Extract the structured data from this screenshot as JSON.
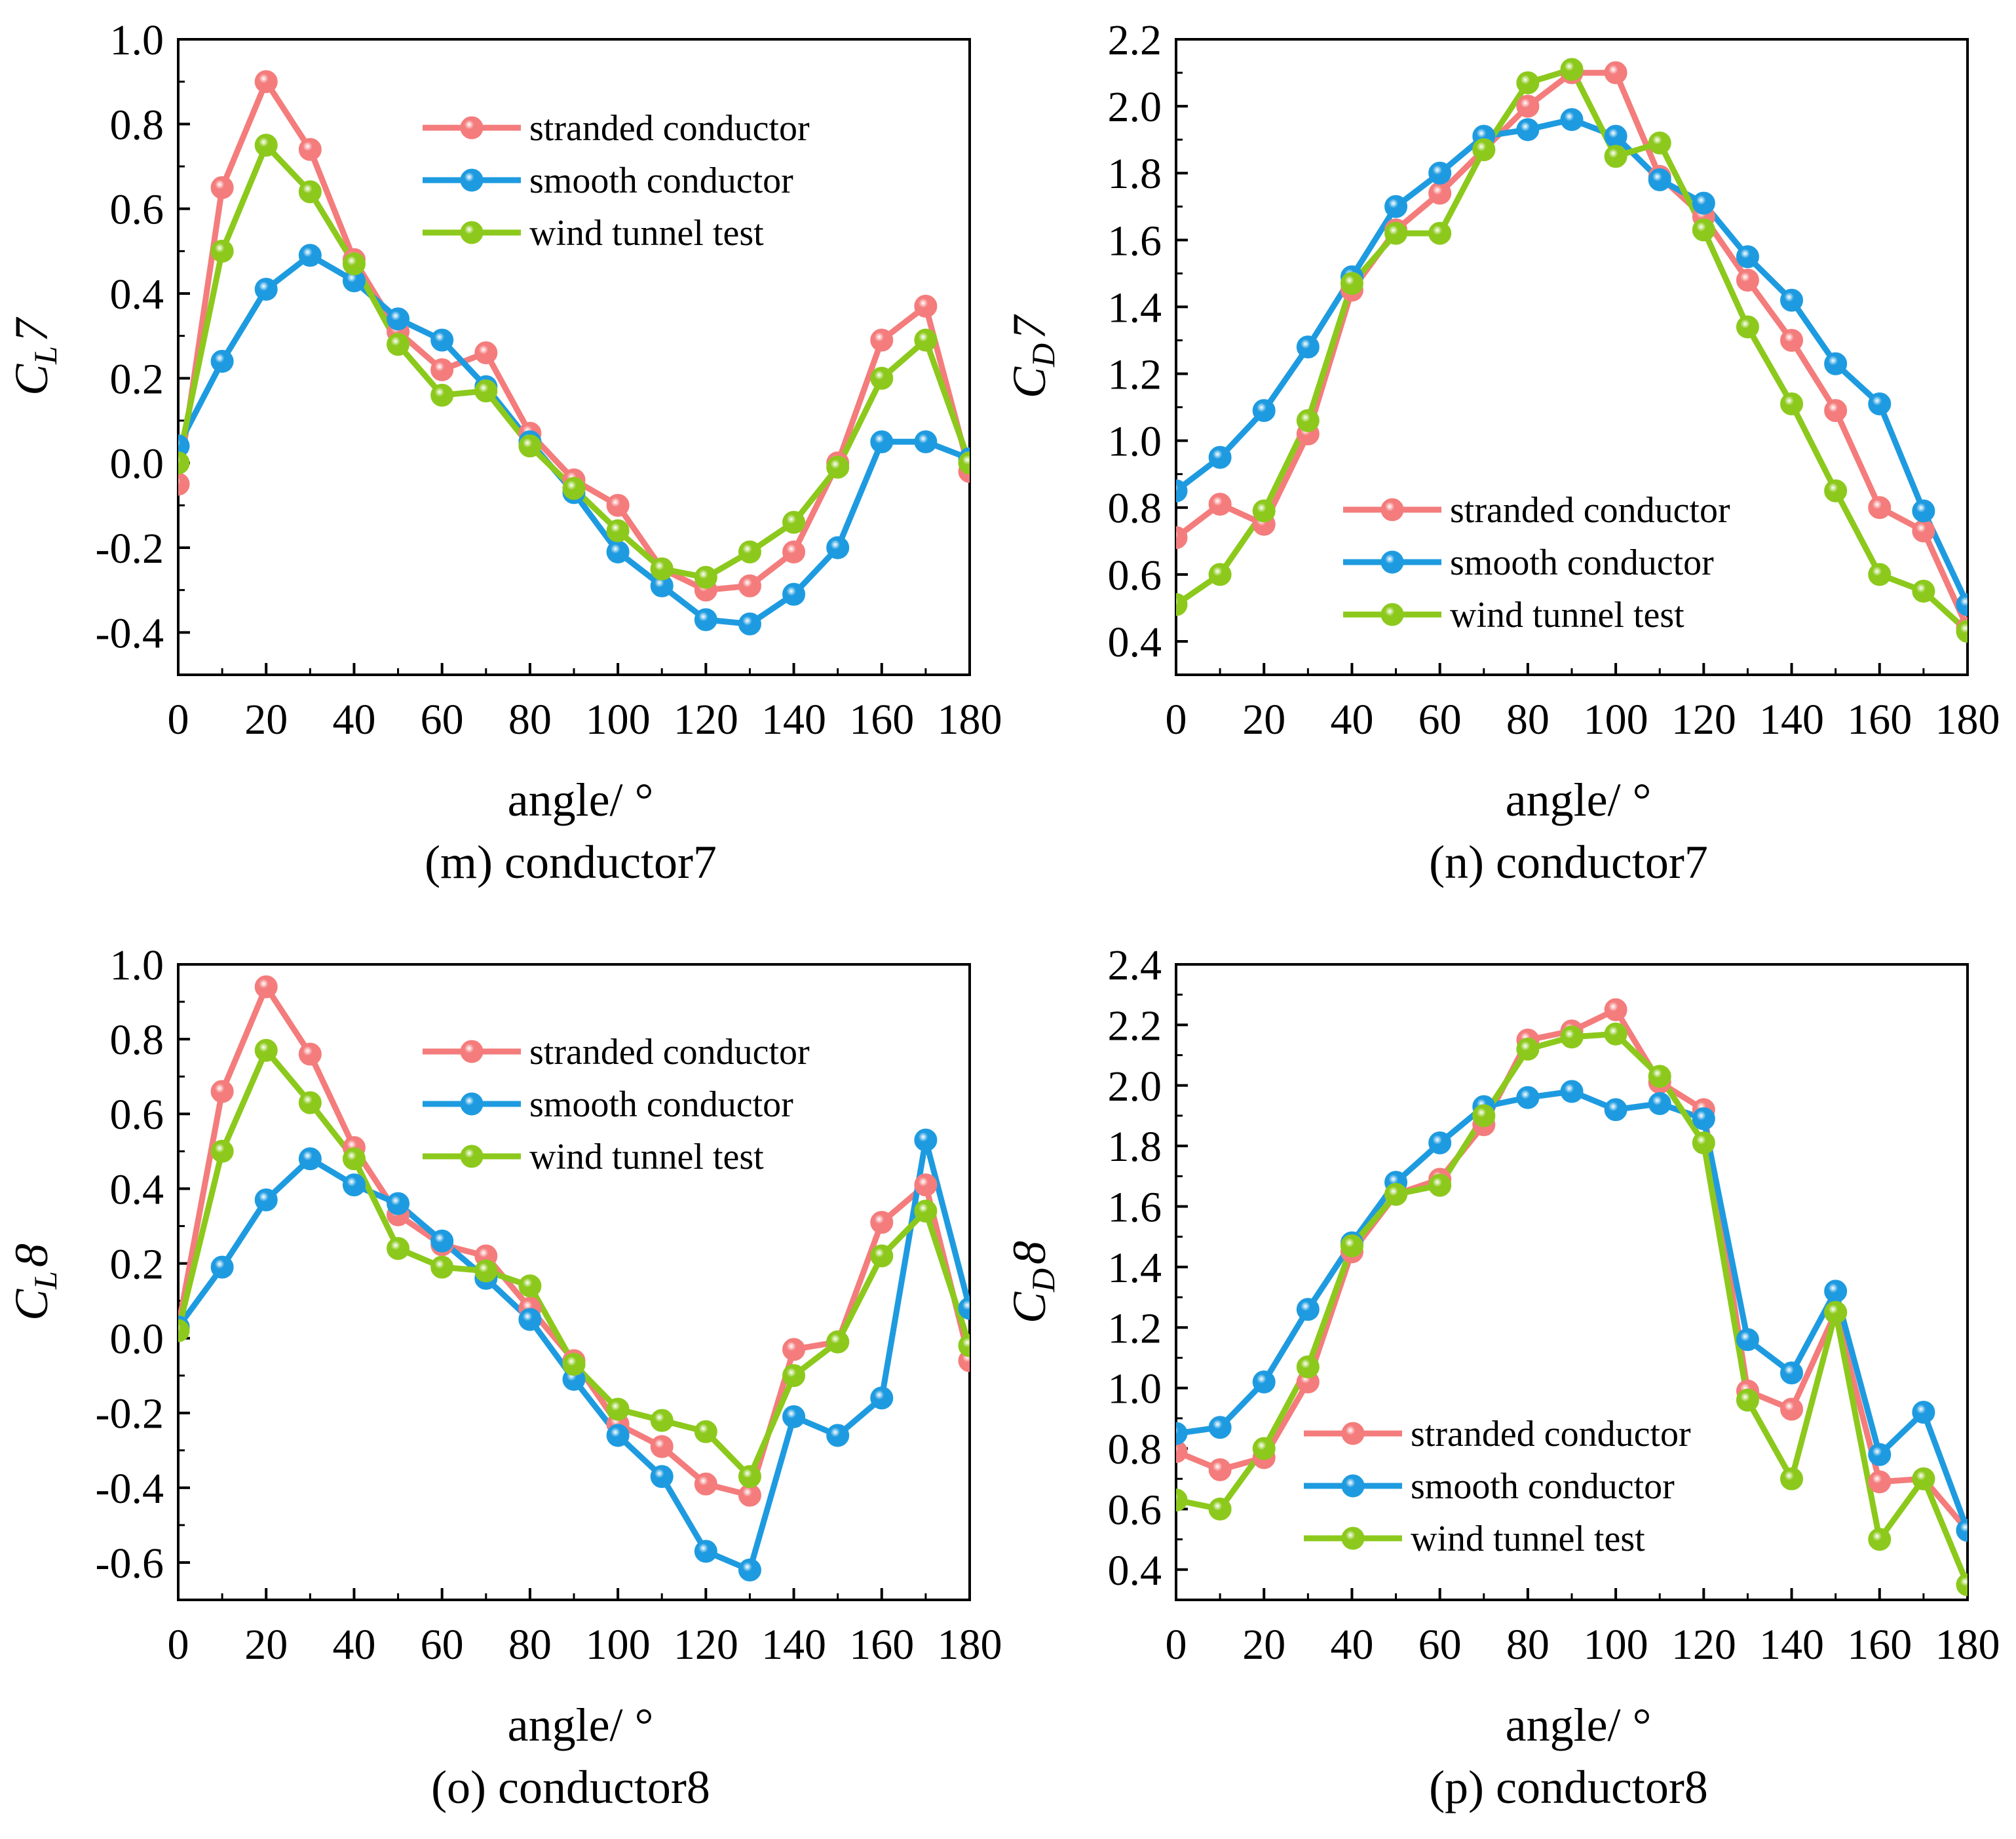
{
  "colors": {
    "stranded": "#f47c7c",
    "smooth": "#1e9be0",
    "wind": "#8cc91c"
  },
  "chart_data": [
    {
      "type": "line",
      "panel": "m",
      "caption": "(m) conductor7",
      "xlabel": "angle/ °",
      "ylabel": {
        "main": "C",
        "sub": "L",
        "num": "7"
      },
      "xlim": [
        0,
        180
      ],
      "ylim": [
        -0.5,
        1.0
      ],
      "xticks": [
        0,
        20,
        40,
        60,
        80,
        100,
        120,
        140,
        160,
        180
      ],
      "yticks": [
        -0.4,
        -0.2,
        0.0,
        0.2,
        0.4,
        0.6,
        0.8,
        1.0
      ],
      "ytick_labels": [
        "-0.4",
        "-0.2",
        "0.0",
        "0.2",
        "0.4",
        "0.6",
        "0.8",
        "1.0"
      ],
      "xtick_labels": [
        "0",
        "20",
        "40",
        "60",
        "80",
        "100",
        "120",
        "140",
        "160",
        "180"
      ],
      "legend_position": "top-right",
      "x": [
        0,
        10,
        20,
        30,
        40,
        50,
        60,
        70,
        80,
        90,
        100,
        110,
        120,
        130,
        140,
        150,
        160,
        170,
        180
      ],
      "series": [
        {
          "name": "stranded conductor",
          "key": "stranded",
          "values": [
            -0.05,
            0.65,
            0.9,
            0.74,
            0.48,
            0.31,
            0.22,
            0.26,
            0.07,
            -0.04,
            -0.1,
            -0.25,
            -0.3,
            -0.29,
            -0.21,
            0.0,
            0.29,
            0.37,
            -0.02
          ]
        },
        {
          "name": "smooth conductor",
          "key": "smooth",
          "values": [
            0.04,
            0.24,
            0.41,
            0.49,
            0.43,
            0.34,
            0.29,
            0.18,
            0.05,
            -0.07,
            -0.21,
            -0.29,
            -0.37,
            -0.38,
            -0.31,
            -0.2,
            0.05,
            0.05,
            0.01
          ]
        },
        {
          "name": "wind tunnel test",
          "key": "wind",
          "values": [
            0.0,
            0.5,
            0.75,
            0.64,
            0.47,
            0.28,
            0.16,
            0.17,
            0.04,
            -0.06,
            -0.16,
            -0.25,
            -0.27,
            -0.21,
            -0.14,
            -0.01,
            0.2,
            0.29,
            0.0
          ]
        }
      ]
    },
    {
      "type": "line",
      "panel": "n",
      "caption": "(n) conductor7",
      "xlabel": "angle/ °",
      "ylabel": {
        "main": "C",
        "sub": "D",
        "num": "7"
      },
      "xlim": [
        0,
        180
      ],
      "ylim": [
        0.3,
        2.2
      ],
      "xticks": [
        0,
        20,
        40,
        60,
        80,
        100,
        120,
        140,
        160,
        180
      ],
      "yticks": [
        0.4,
        0.6,
        0.8,
        1.0,
        1.2,
        1.4,
        1.6,
        1.8,
        2.0,
        2.2
      ],
      "ytick_labels": [
        "0.4",
        "0.6",
        "0.8",
        "1.0",
        "1.2",
        "1.4",
        "1.6",
        "1.8",
        "2.0",
        "2.2"
      ],
      "xtick_labels": [
        "0",
        "20",
        "40",
        "60",
        "80",
        "100",
        "120",
        "140",
        "160",
        "180"
      ],
      "legend_position": "bottom-center",
      "x": [
        0,
        10,
        20,
        30,
        40,
        50,
        60,
        70,
        80,
        90,
        100,
        110,
        120,
        130,
        140,
        150,
        160,
        170,
        180
      ],
      "series": [
        {
          "name": "stranded conductor",
          "key": "stranded",
          "values": [
            0.71,
            0.81,
            0.75,
            1.02,
            1.45,
            1.63,
            1.74,
            1.87,
            2.0,
            2.1,
            2.1,
            1.79,
            1.67,
            1.48,
            1.3,
            1.09,
            0.8,
            0.73,
            0.44
          ]
        },
        {
          "name": "smooth conductor",
          "key": "smooth",
          "values": [
            0.85,
            0.95,
            1.09,
            1.28,
            1.49,
            1.7,
            1.8,
            1.91,
            1.93,
            1.96,
            1.91,
            1.78,
            1.71,
            1.55,
            1.42,
            1.23,
            1.11,
            0.79,
            0.51
          ]
        },
        {
          "name": "wind tunnel test",
          "key": "wind",
          "values": [
            0.51,
            0.6,
            0.79,
            1.06,
            1.47,
            1.62,
            1.62,
            1.87,
            2.07,
            2.11,
            1.85,
            1.89,
            1.63,
            1.34,
            1.11,
            0.85,
            0.6,
            0.55,
            0.43
          ]
        }
      ]
    },
    {
      "type": "line",
      "panel": "o",
      "caption": "(o) conductor8",
      "xlabel": "angle/ °",
      "ylabel": {
        "main": "C",
        "sub": "L",
        "num": "8"
      },
      "xlim": [
        0,
        180
      ],
      "ylim": [
        -0.7,
        1.0
      ],
      "xticks": [
        0,
        20,
        40,
        60,
        80,
        100,
        120,
        140,
        160,
        180
      ],
      "yticks": [
        -0.6,
        -0.4,
        -0.2,
        0.0,
        0.2,
        0.4,
        0.6,
        0.8,
        1.0
      ],
      "ytick_labels": [
        "-0.6",
        "-0.4",
        "-0.2",
        "0.0",
        "0.2",
        "0.4",
        "0.6",
        "0.8",
        "1.0"
      ],
      "xtick_labels": [
        "0",
        "20",
        "40",
        "60",
        "80",
        "100",
        "120",
        "140",
        "160",
        "180"
      ],
      "legend_position": "top-right",
      "x": [
        0,
        10,
        20,
        30,
        40,
        50,
        60,
        70,
        80,
        90,
        100,
        110,
        120,
        130,
        140,
        150,
        160,
        170,
        180
      ],
      "series": [
        {
          "name": "stranded conductor",
          "key": "stranded",
          "values": [
            0.03,
            0.66,
            0.94,
            0.76,
            0.51,
            0.33,
            0.25,
            0.22,
            0.08,
            -0.06,
            -0.23,
            -0.29,
            -0.39,
            -0.42,
            -0.03,
            -0.01,
            0.31,
            0.41,
            -0.06
          ]
        },
        {
          "name": "smooth conductor",
          "key": "smooth",
          "values": [
            0.03,
            0.19,
            0.37,
            0.48,
            0.41,
            0.36,
            0.26,
            0.16,
            0.05,
            -0.11,
            -0.26,
            -0.37,
            -0.57,
            -0.62,
            -0.21,
            -0.26,
            -0.16,
            0.53,
            0.08
          ]
        },
        {
          "name": "wind tunnel test",
          "key": "wind",
          "values": [
            0.02,
            0.5,
            0.77,
            0.63,
            0.48,
            0.24,
            0.19,
            0.18,
            0.14,
            -0.07,
            -0.19,
            -0.22,
            -0.25,
            -0.37,
            -0.1,
            -0.01,
            0.22,
            0.34,
            -0.02
          ]
        }
      ]
    },
    {
      "type": "line",
      "panel": "p",
      "caption": "(p) conductor8",
      "xlabel": "angle/ °",
      "ylabel": {
        "main": "C",
        "sub": "D",
        "num": "8"
      },
      "xlim": [
        0,
        180
      ],
      "ylim": [
        0.3,
        2.4
      ],
      "xticks": [
        0,
        20,
        40,
        60,
        80,
        100,
        120,
        140,
        160,
        180
      ],
      "yticks": [
        0.4,
        0.6,
        0.8,
        1.0,
        1.2,
        1.4,
        1.6,
        1.8,
        2.0,
        2.2,
        2.4
      ],
      "ytick_labels": [
        "0.4",
        "0.6",
        "0.8",
        "1.0",
        "1.2",
        "1.4",
        "1.6",
        "1.8",
        "2.0",
        "2.2",
        "2.4"
      ],
      "xtick_labels": [
        "0",
        "20",
        "40",
        "60",
        "80",
        "100",
        "120",
        "140",
        "160",
        "180"
      ],
      "legend_position": "bottom-center",
      "x": [
        0,
        10,
        20,
        30,
        40,
        50,
        60,
        70,
        80,
        90,
        100,
        110,
        120,
        130,
        140,
        150,
        160,
        170,
        180
      ],
      "series": [
        {
          "name": "stranded conductor",
          "key": "stranded",
          "values": [
            0.79,
            0.73,
            0.77,
            1.02,
            1.45,
            1.64,
            1.69,
            1.87,
            2.15,
            2.18,
            2.25,
            2.01,
            1.92,
            0.99,
            0.93,
            1.25,
            0.69,
            0.7,
            0.53
          ]
        },
        {
          "name": "smooth conductor",
          "key": "smooth",
          "values": [
            0.85,
            0.87,
            1.02,
            1.26,
            1.48,
            1.68,
            1.81,
            1.93,
            1.96,
            1.98,
            1.92,
            1.94,
            1.89,
            1.16,
            1.05,
            1.32,
            0.78,
            0.92,
            0.53
          ]
        },
        {
          "name": "wind tunnel test",
          "key": "wind",
          "values": [
            0.63,
            0.6,
            0.8,
            1.07,
            1.47,
            1.64,
            1.67,
            1.9,
            2.12,
            2.16,
            2.17,
            2.03,
            1.81,
            0.96,
            0.7,
            1.25,
            0.5,
            0.7,
            0.35
          ]
        }
      ]
    }
  ]
}
